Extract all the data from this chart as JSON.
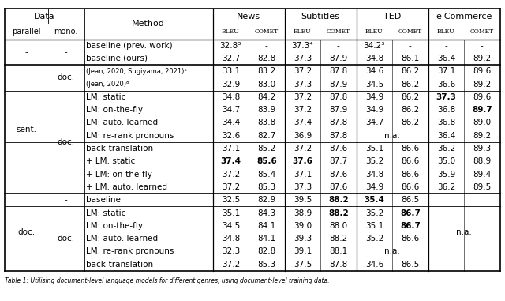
{
  "figsize": [
    6.4,
    3.81
  ],
  "dpi": 100,
  "bg_color": "#ffffff",
  "font_size": 7.5,
  "small_font_size": 6.0,
  "caption_font_size": 5.5,
  "caption": "Table 1: Utilising document-level language models for different genres, using document-level training data.",
  "rows": [
    {
      "parallel": "-",
      "mono": "-",
      "method": "baseline (prev. work)",
      "news_bleu": "32.8³",
      "news_comet": "-",
      "sub_bleu": "37.3⁴",
      "sub_comet": "-",
      "ted_bleu": "34.2³",
      "ted_comet": "-",
      "ec_bleu": "-",
      "ec_comet": "-",
      "bold": [],
      "ted_na": false
    },
    {
      "parallel": "-",
      "mono": "-",
      "method": "baseline (ours)",
      "news_bleu": "32.7",
      "news_comet": "82.8",
      "sub_bleu": "37.3",
      "sub_comet": "87.9",
      "ted_bleu": "34.8",
      "ted_comet": "86.1",
      "ec_bleu": "36.4",
      "ec_comet": "89.2",
      "bold": [],
      "ted_na": false
    },
    {
      "parallel": "sent.",
      "mono": "doc.",
      "method": "(Jean, 2020; Sugiyama, 2021)⁵",
      "news_bleu": "33.1",
      "news_comet": "83.2",
      "sub_bleu": "37.2",
      "sub_comet": "87.8",
      "ted_bleu": "34.6",
      "ted_comet": "86.2",
      "ec_bleu": "37.1",
      "ec_comet": "89.6",
      "bold": [],
      "ted_na": false,
      "small_method": true
    },
    {
      "parallel": "sent.",
      "mono": "doc.",
      "method": "(Jean, 2020)⁶",
      "news_bleu": "32.9",
      "news_comet": "83.0",
      "sub_bleu": "37.3",
      "sub_comet": "87.9",
      "ted_bleu": "34.5",
      "ted_comet": "86.2",
      "ec_bleu": "36.6",
      "ec_comet": "89.2",
      "bold": [],
      "ted_na": false,
      "small_method": true
    },
    {
      "parallel": "sent.",
      "mono": "doc.",
      "method": "LM: static",
      "news_bleu": "34.8",
      "news_comet": "84.2",
      "sub_bleu": "37.2",
      "sub_comet": "87.8",
      "ted_bleu": "34.9",
      "ted_comet": "86.2",
      "ec_bleu": "37.3",
      "ec_comet": "89.6",
      "bold": [
        "ec_bleu"
      ],
      "ted_na": false
    },
    {
      "parallel": "sent.",
      "mono": "doc.",
      "method": "LM: on-the-fly",
      "news_bleu": "34.7",
      "news_comet": "83.9",
      "sub_bleu": "37.2",
      "sub_comet": "87.9",
      "ted_bleu": "34.9",
      "ted_comet": "86.2",
      "ec_bleu": "36.8",
      "ec_comet": "89.7",
      "bold": [
        "ec_comet"
      ],
      "ted_na": false
    },
    {
      "parallel": "sent.",
      "mono": "doc.",
      "method": "LM: auto. learned",
      "news_bleu": "34.4",
      "news_comet": "83.8",
      "sub_bleu": "37.4",
      "sub_comet": "87.8",
      "ted_bleu": "34.7",
      "ted_comet": "86.2",
      "ec_bleu": "36.8",
      "ec_comet": "89.0",
      "bold": [],
      "ted_na": false
    },
    {
      "parallel": "sent.",
      "mono": "doc.",
      "method": "LM: re-rank pronouns",
      "news_bleu": "32.6",
      "news_comet": "82.7",
      "sub_bleu": "36.9",
      "sub_comet": "87.8",
      "ted_bleu": "",
      "ted_comet": "",
      "ec_bleu": "36.4",
      "ec_comet": "89.2",
      "bold": [],
      "ted_na": true
    },
    {
      "parallel": "sent.",
      "mono": "doc.",
      "method": "back-translation",
      "news_bleu": "37.1",
      "news_comet": "85.2",
      "sub_bleu": "37.2",
      "sub_comet": "87.6",
      "ted_bleu": "35.1",
      "ted_comet": "86.6",
      "ec_bleu": "36.2",
      "ec_comet": "89.3",
      "bold": [],
      "ted_na": false
    },
    {
      "parallel": "sent.",
      "mono": "doc.",
      "method": "+ LM: static",
      "news_bleu": "37.4",
      "news_comet": "85.6",
      "sub_bleu": "37.6",
      "sub_comet": "87.7",
      "ted_bleu": "35.2",
      "ted_comet": "86.6",
      "ec_bleu": "35.0",
      "ec_comet": "88.9",
      "bold": [
        "news_bleu",
        "news_comet",
        "sub_bleu"
      ],
      "ted_na": false
    },
    {
      "parallel": "sent.",
      "mono": "doc.",
      "method": "+ LM: on-the-fly",
      "news_bleu": "37.2",
      "news_comet": "85.4",
      "sub_bleu": "37.1",
      "sub_comet": "87.6",
      "ted_bleu": "34.8",
      "ted_comet": "86.6",
      "ec_bleu": "35.9",
      "ec_comet": "89.4",
      "bold": [],
      "ted_na": false
    },
    {
      "parallel": "sent.",
      "mono": "doc.",
      "method": "+ LM: auto. learned",
      "news_bleu": "37.2",
      "news_comet": "85.3",
      "sub_bleu": "37.3",
      "sub_comet": "87.6",
      "ted_bleu": "34.9",
      "ted_comet": "86.6",
      "ec_bleu": "36.2",
      "ec_comet": "89.5",
      "bold": [],
      "ted_na": false
    },
    {
      "parallel": "doc.",
      "mono": "-",
      "method": "baseline",
      "news_bleu": "32.5",
      "news_comet": "82.9",
      "sub_bleu": "39.5",
      "sub_comet": "88.2",
      "ted_bleu": "35.4",
      "ted_comet": "86.5",
      "ec_bleu": "",
      "ec_comet": "",
      "bold": [
        "sub_comet",
        "ted_bleu"
      ],
      "ted_na": false
    },
    {
      "parallel": "doc.",
      "mono": "doc.",
      "method": "LM: static",
      "news_bleu": "35.1",
      "news_comet": "84.3",
      "sub_bleu": "38.9",
      "sub_comet": "88.2",
      "ted_bleu": "35.2",
      "ted_comet": "86.7",
      "ec_bleu": "",
      "ec_comet": "",
      "bold": [
        "sub_comet",
        "ted_comet"
      ],
      "ted_na": false
    },
    {
      "parallel": "doc.",
      "mono": "doc.",
      "method": "LM: on-the-fly",
      "news_bleu": "34.5",
      "news_comet": "84.1",
      "sub_bleu": "39.0",
      "sub_comet": "88.0",
      "ted_bleu": "35.1",
      "ted_comet": "86.7",
      "ec_bleu": "",
      "ec_comet": "",
      "bold": [
        "ted_comet"
      ],
      "ted_na": false
    },
    {
      "parallel": "doc.",
      "mono": "doc.",
      "method": "LM: auto. learned",
      "news_bleu": "34.8",
      "news_comet": "84.1",
      "sub_bleu": "39.3",
      "sub_comet": "88.2",
      "ted_bleu": "35.2",
      "ted_comet": "86.6",
      "ec_bleu": "",
      "ec_comet": "",
      "bold": [],
      "ted_na": false
    },
    {
      "parallel": "doc.",
      "mono": "doc.",
      "method": "LM: re-rank pronouns",
      "news_bleu": "32.3",
      "news_comet": "82.8",
      "sub_bleu": "39.1",
      "sub_comet": "88.1",
      "ted_bleu": "",
      "ted_comet": "",
      "ec_bleu": "",
      "ec_comet": "",
      "bold": [],
      "ted_na": true
    },
    {
      "parallel": "doc.",
      "mono": "doc.",
      "method": "back-translation",
      "news_bleu": "37.2",
      "news_comet": "85.3",
      "sub_bleu": "37.5",
      "sub_comet": "87.8",
      "ted_bleu": "34.6",
      "ted_comet": "86.5",
      "ec_bleu": "",
      "ec_comet": "",
      "bold": [],
      "ted_na": false
    }
  ],
  "parallel_spans": [
    {
      "label": "-",
      "rows": [
        0,
        1
      ]
    },
    {
      "label": "sent.",
      "rows": [
        2,
        11
      ]
    },
    {
      "label": "doc.",
      "rows": [
        12,
        17
      ]
    }
  ],
  "mono_spans": [
    {
      "label": "-",
      "rows": [
        0,
        1
      ]
    },
    {
      "label": "doc.",
      "rows": [
        2,
        3
      ]
    },
    {
      "label": "doc.",
      "rows": [
        4,
        11
      ]
    },
    {
      "label": "-",
      "rows": [
        12,
        12
      ]
    },
    {
      "label": "doc.",
      "rows": [
        13,
        17
      ]
    }
  ],
  "thick_lines_after_rows": [
    1,
    11
  ],
  "thin_lines_after_rows": [
    3,
    7,
    12
  ],
  "ec_na_rows": [
    12,
    13,
    14,
    15,
    16,
    17
  ]
}
